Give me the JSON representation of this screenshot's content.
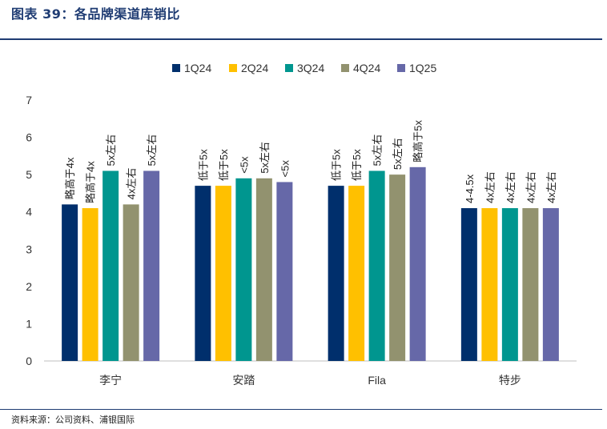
{
  "figure": {
    "title": "图表 39：各品牌渠道库销比",
    "source": "资料来源：公司资料、浦银国际"
  },
  "chart_data": {
    "type": "bar",
    "title": "各品牌渠道库销比",
    "categories": [
      "李宁",
      "安踏",
      "Fila",
      "特步"
    ],
    "series": [
      {
        "name": "1Q24",
        "color": "#002f6c",
        "values": [
          4.2,
          4.7,
          4.7,
          4.1
        ],
        "labels": [
          "略高于4x",
          "低于5x",
          "低于5x",
          "4-4.5x"
        ]
      },
      {
        "name": "2Q24",
        "color": "#ffc000",
        "values": [
          4.1,
          4.7,
          4.7,
          4.1
        ],
        "labels": [
          "略高于4x",
          "低于5x",
          "低于5x",
          "4x左右"
        ]
      },
      {
        "name": "3Q24",
        "color": "#00968f",
        "values": [
          5.1,
          4.9,
          5.1,
          4.1
        ],
        "labels": [
          "5x左右",
          "<5x",
          "5x左右",
          "4x左右"
        ]
      },
      {
        "name": "4Q24",
        "color": "#92926f",
        "values": [
          4.2,
          4.9,
          5.0,
          4.1
        ],
        "labels": [
          "4x左右",
          "5x左右",
          "5x左右",
          "4x左右"
        ]
      },
      {
        "name": "1Q25",
        "color": "#6668a8",
        "values": [
          5.1,
          4.8,
          5.2,
          4.1
        ],
        "labels": [
          "5x左右",
          "<5x",
          "略高于5x",
          "4x左右"
        ]
      }
    ],
    "ylim": [
      0,
      7
    ],
    "yticks": [
      0,
      1,
      2,
      3,
      4,
      5,
      6,
      7
    ],
    "xlabel": "",
    "ylabel": "",
    "grid": false,
    "legend": "top"
  }
}
